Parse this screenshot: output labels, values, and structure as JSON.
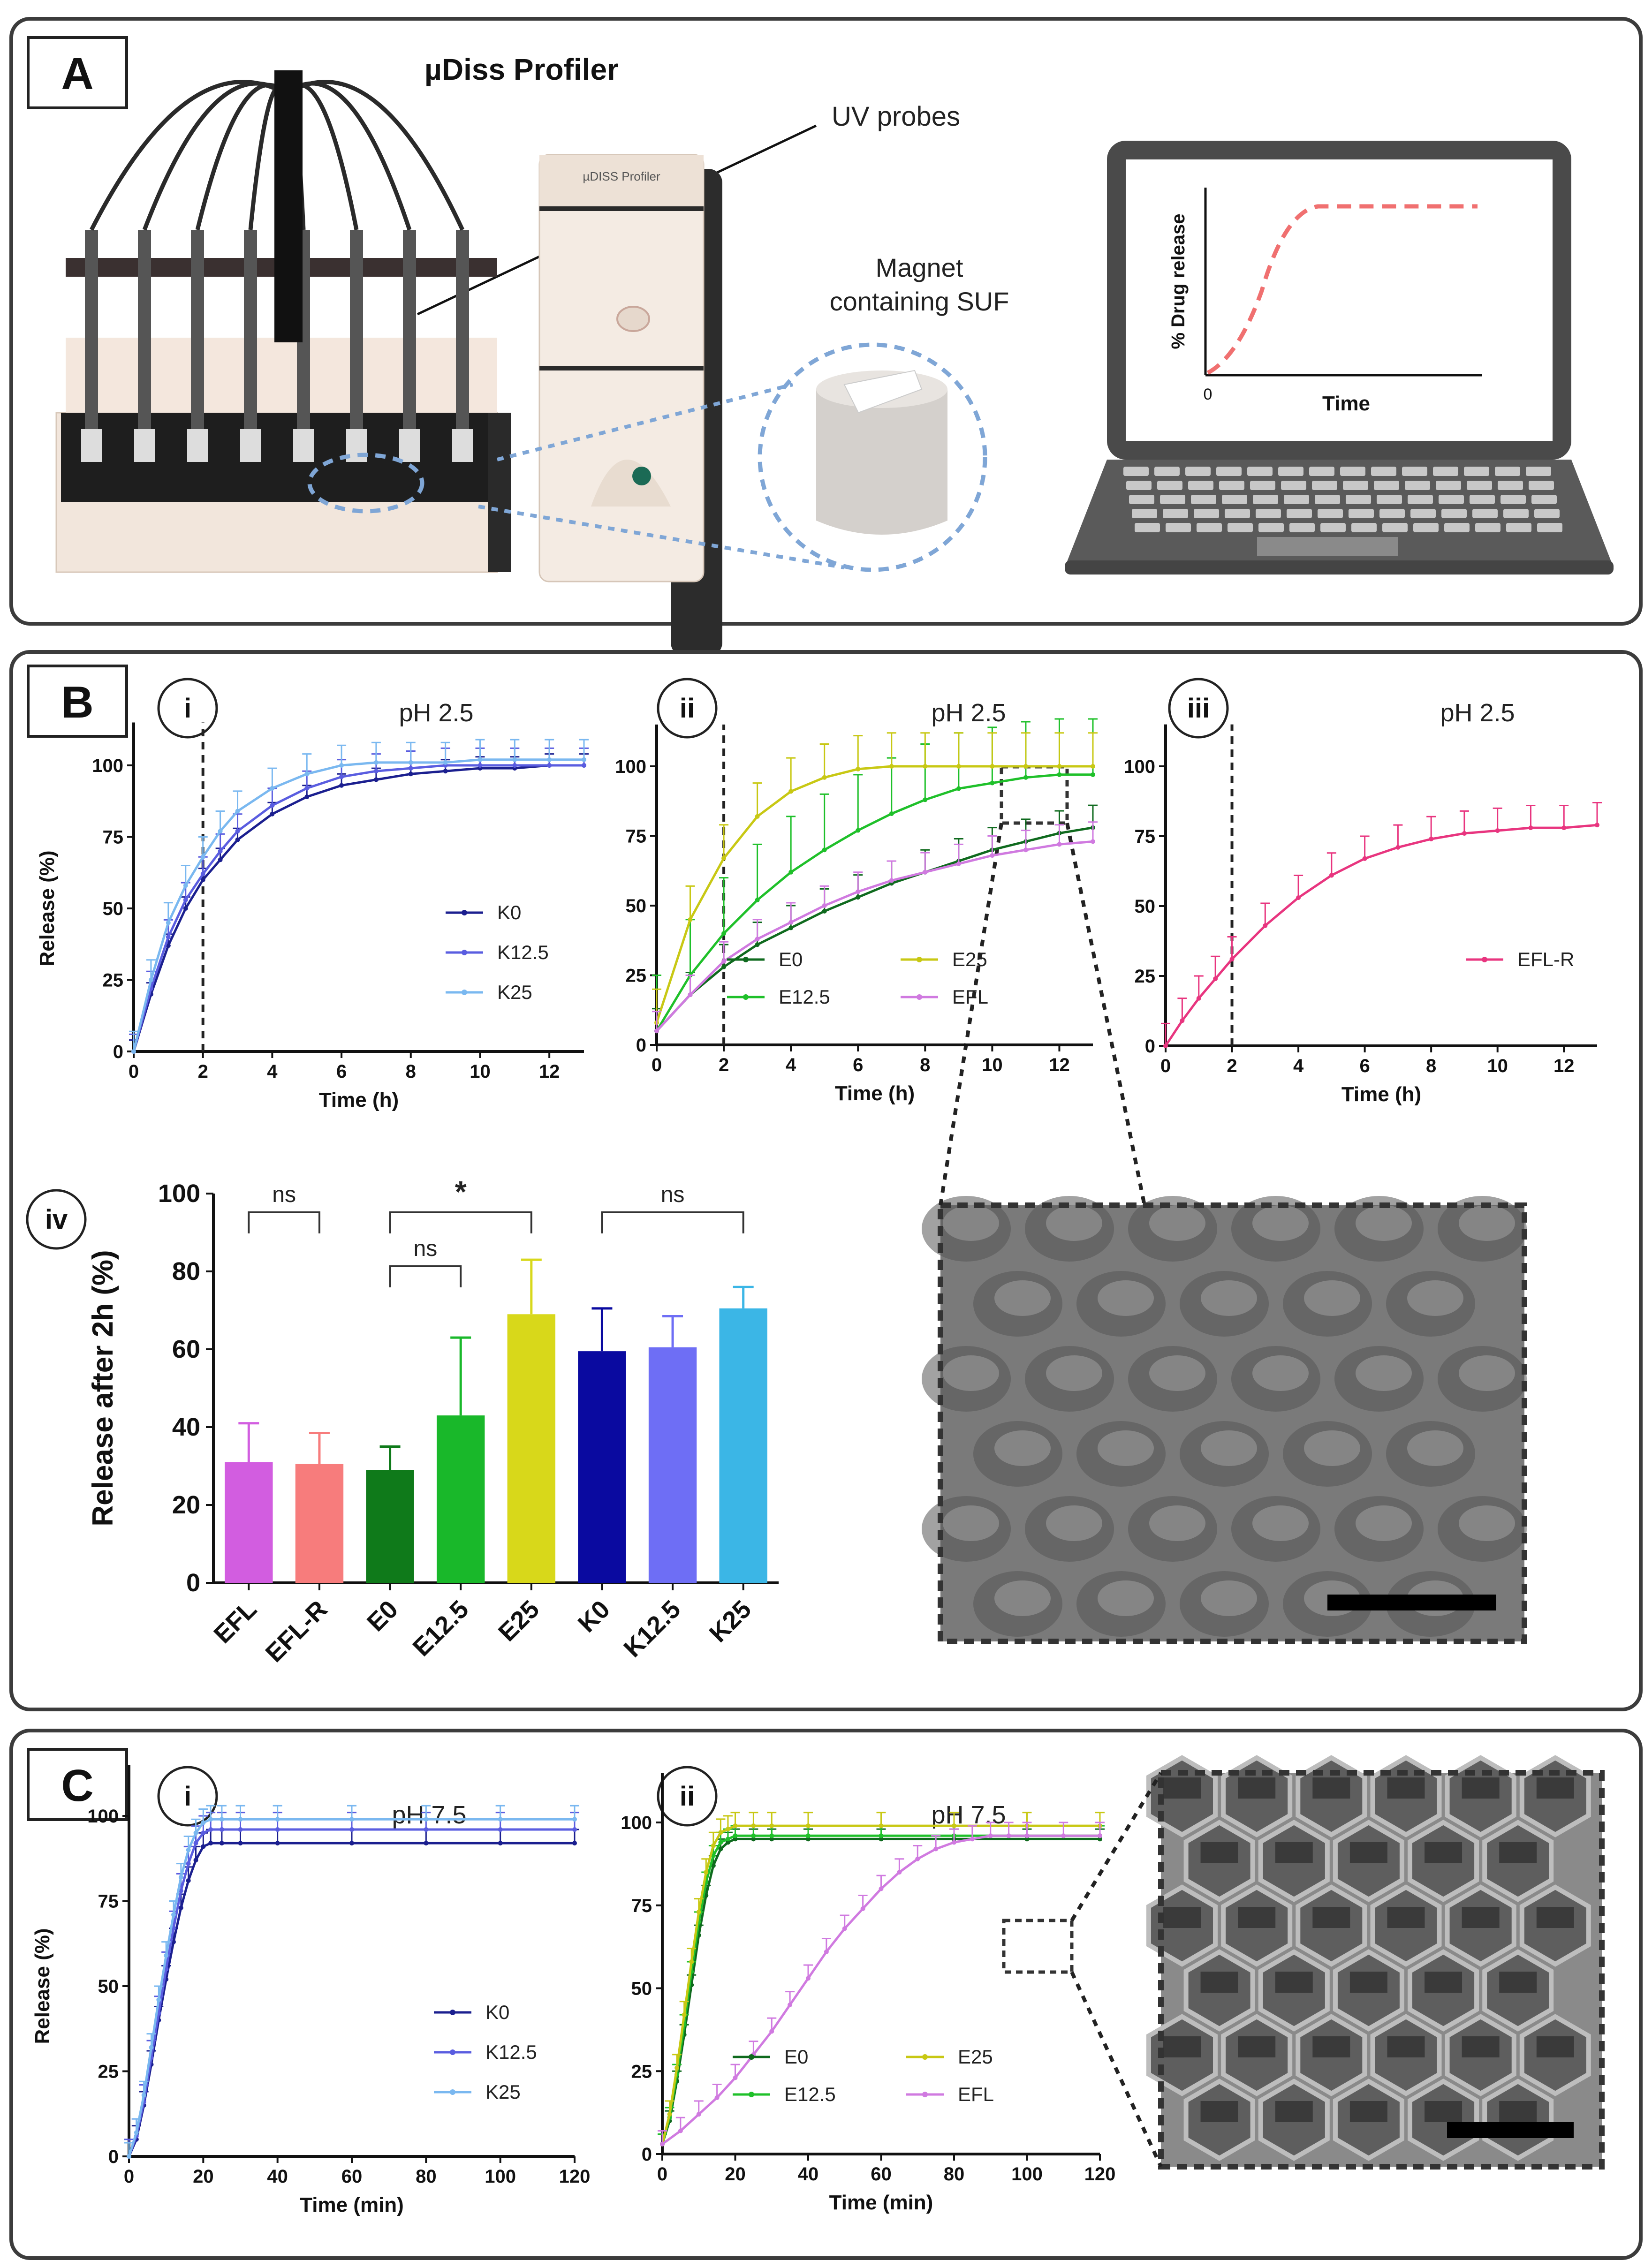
{
  "panelA": {
    "letter": "A",
    "instrument_title": "µDiss Profiler",
    "uv_label": "UV probes",
    "magnet_label_1": "Magnet",
    "magnet_label_2": "containing SUF",
    "device_badge": "µDISS Profiler",
    "plot_ylabel": "% Drug release",
    "plot_xlabel": "Time",
    "plot_zero": "0"
  },
  "panelB": {
    "letter": "B"
  },
  "panelC": {
    "letter": "C"
  },
  "colors": {
    "K0": "#1b1f8f",
    "K12.5": "#5a5de0",
    "K25": "#7ab8f0",
    "E0": "#0f6a1e",
    "E12.5": "#1fc02a",
    "E25": "#c8c814",
    "EFL": "#d07ae0",
    "EFL-R": "#e8357f",
    "EFL_bar": "#d25de0",
    "EFLR_bar": "#f77c7c",
    "E0_bar": "#0f7a1a",
    "E12_bar": "#19b82a",
    "E25_bar": "#d8d81a",
    "K0_bar": "#0a0aa0",
    "K12_bar": "#6e6ef5",
    "K25_bar": "#3bb6e6"
  },
  "chart_data": [
    {
      "id": "Bi",
      "roman": "i",
      "type": "line",
      "title": "pH 2.5",
      "xlabel": "Time (h)",
      "ylabel": "Release (%)",
      "xlim": [
        0,
        13
      ],
      "ylim": [
        0,
        100
      ],
      "xticks": [
        "0",
        "2",
        "4",
        "6",
        "8",
        "10",
        "12"
      ],
      "yticks": [
        "0",
        "25",
        "50",
        "75",
        "100"
      ],
      "vline": 2,
      "series": [
        {
          "name": "K0",
          "color": "#1b1f8f",
          "x": [
            0,
            0.5,
            1,
            1.5,
            2,
            2.5,
            3,
            4,
            5,
            6,
            7,
            8,
            9,
            10,
            11,
            12,
            13
          ],
          "y": [
            0,
            20,
            37,
            50,
            60,
            67,
            74,
            83,
            89,
            93,
            95,
            97,
            98,
            99,
            99,
            100,
            100
          ],
          "err": 4
        },
        {
          "name": "K12.5",
          "color": "#5a5de0",
          "x": [
            0,
            0.5,
            1,
            1.5,
            2,
            2.5,
            3,
            4,
            5,
            6,
            7,
            8,
            9,
            10,
            11,
            12,
            13
          ],
          "y": [
            0,
            22,
            40,
            53,
            62,
            70,
            77,
            86,
            92,
            96,
            98,
            99,
            100,
            100,
            100,
            100,
            100
          ],
          "err": 6
        },
        {
          "name": "K25",
          "color": "#7ab8f0",
          "x": [
            0,
            0.5,
            1,
            1.5,
            2,
            2.5,
            3,
            4,
            5,
            6,
            7,
            8,
            9,
            10,
            11,
            12,
            13
          ],
          "y": [
            0,
            25,
            45,
            58,
            68,
            77,
            84,
            92,
            97,
            100,
            101,
            101,
            101,
            102,
            102,
            102,
            102
          ],
          "err": 7
        }
      ]
    },
    {
      "id": "Bii",
      "roman": "ii",
      "type": "line",
      "title": "pH 2.5",
      "xlabel": "Time (h)",
      "ylabel": "",
      "xlim": [
        0,
        13
      ],
      "ylim": [
        0,
        100
      ],
      "xticks": [
        "0",
        "2",
        "4",
        "6",
        "8",
        "10",
        "12"
      ],
      "yticks": [
        "0",
        "25",
        "50",
        "75",
        "100"
      ],
      "vline": 2,
      "series": [
        {
          "name": "E0",
          "color": "#0f6a1e",
          "x": [
            0,
            1,
            2,
            3,
            4,
            5,
            6,
            7,
            8,
            9,
            10,
            11,
            12,
            13
          ],
          "y": [
            5,
            18,
            28,
            36,
            42,
            48,
            53,
            58,
            62,
            66,
            70,
            73,
            76,
            78
          ],
          "err": 8
        },
        {
          "name": "E12.5",
          "color": "#1fc02a",
          "x": [
            0,
            1,
            2,
            3,
            4,
            5,
            6,
            7,
            8,
            9,
            10,
            11,
            12,
            13
          ],
          "y": [
            5,
            25,
            40,
            52,
            62,
            70,
            77,
            83,
            88,
            92,
            94,
            96,
            97,
            97
          ],
          "err": 20
        },
        {
          "name": "E25",
          "color": "#c8c814",
          "x": [
            0,
            1,
            2,
            3,
            4,
            5,
            6,
            7,
            8,
            9,
            10,
            11,
            12,
            13
          ],
          "y": [
            8,
            45,
            67,
            82,
            91,
            96,
            99,
            100,
            100,
            100,
            100,
            100,
            100,
            100
          ],
          "err": 12
        },
        {
          "name": "EFL",
          "color": "#d07ae0",
          "x": [
            0,
            1,
            2,
            3,
            4,
            5,
            6,
            7,
            8,
            9,
            10,
            11,
            12,
            13
          ],
          "y": [
            5,
            18,
            30,
            38,
            44,
            50,
            55,
            59,
            62,
            65,
            68,
            70,
            72,
            73
          ],
          "err": 7
        }
      ]
    },
    {
      "id": "Biii",
      "roman": "iii",
      "type": "line",
      "title": "pH 2.5",
      "xlabel": "Time (h)",
      "ylabel": "",
      "xlim": [
        0,
        13
      ],
      "ylim": [
        0,
        100
      ],
      "xticks": [
        "0",
        "2",
        "4",
        "6",
        "8",
        "10",
        "12"
      ],
      "yticks": [
        "0",
        "25",
        "50",
        "75",
        "100"
      ],
      "vline": 2,
      "series": [
        {
          "name": "EFL-R",
          "color": "#e8357f",
          "x": [
            0,
            0.5,
            1,
            1.5,
            2,
            3,
            4,
            5,
            6,
            7,
            8,
            9,
            10,
            11,
            12,
            13
          ],
          "y": [
            0,
            9,
            17,
            24,
            31,
            43,
            53,
            61,
            67,
            71,
            74,
            76,
            77,
            78,
            78,
            79
          ],
          "err": 8
        }
      ]
    },
    {
      "id": "Biv",
      "roman": "iv",
      "type": "bar",
      "xlabel": "",
      "ylabel": "Release after 2h (%)",
      "ylim": [
        0,
        100
      ],
      "yticks": [
        "0",
        "20",
        "40",
        "60",
        "80",
        "100"
      ],
      "categories": [
        "EFL",
        "EFL-R",
        "E0",
        "E12.5",
        "E25",
        "K0",
        "K12.5",
        "K25"
      ],
      "values": [
        31,
        30.5,
        29,
        43,
        69,
        59.5,
        60.5,
        70.5
      ],
      "errors": [
        10,
        8,
        6,
        20,
        14,
        11,
        8,
        5.5
      ],
      "bar_colors": [
        "#d25de0",
        "#f77c7c",
        "#0f7a1a",
        "#19b82a",
        "#d8d81a",
        "#0a0aa0",
        "#6e6ef5",
        "#3bb6e6"
      ],
      "significance": [
        {
          "from": 0,
          "to": 1,
          "label": "ns"
        },
        {
          "from": 2,
          "to": 4,
          "label": "*"
        },
        {
          "from": 2,
          "to": 3,
          "label": "ns"
        },
        {
          "from": 5,
          "to": 7,
          "label": "ns"
        }
      ]
    },
    {
      "id": "Ci",
      "roman": "i",
      "type": "line",
      "title": "pH 7.5",
      "xlabel": "Time (min)",
      "ylabel": "Release (%)",
      "xlim": [
        0,
        120
      ],
      "ylim": [
        0,
        100
      ],
      "xticks": [
        "0",
        "20",
        "40",
        "60",
        "80",
        "100",
        "120"
      ],
      "yticks": [
        "0",
        "25",
        "50",
        "75",
        "100"
      ],
      "series": [
        {
          "name": "K0",
          "color": "#1b1f8f",
          "x": [
            0,
            2,
            4,
            6,
            8,
            10,
            12,
            14,
            16,
            18,
            20,
            22,
            25,
            30,
            40,
            60,
            80,
            100,
            120
          ],
          "y": [
            0,
            5,
            15,
            27,
            40,
            52,
            63,
            73,
            81,
            87,
            91,
            92,
            92,
            92,
            92,
            92,
            92,
            92,
            92
          ],
          "err": 4
        },
        {
          "name": "K12.5",
          "color": "#5a5de0",
          "x": [
            0,
            2,
            4,
            6,
            8,
            10,
            12,
            14,
            16,
            18,
            20,
            22,
            25,
            30,
            40,
            60,
            80,
            100,
            120
          ],
          "y": [
            0,
            6,
            16,
            29,
            42,
            55,
            67,
            78,
            86,
            92,
            95,
            96,
            96,
            96,
            96,
            96,
            96,
            96,
            96
          ],
          "err": 5
        },
        {
          "name": "K25",
          "color": "#7ab8f0",
          "x": [
            0,
            2,
            4,
            6,
            8,
            10,
            12,
            14,
            16,
            18,
            20,
            22,
            25,
            30,
            40,
            60,
            80,
            100,
            120
          ],
          "y": [
            0,
            7,
            18,
            32,
            46,
            59,
            71,
            82,
            90,
            95,
            98,
            99,
            99,
            99,
            99,
            99,
            99,
            99,
            99
          ],
          "err": 4
        }
      ]
    },
    {
      "id": "Cii",
      "roman": "ii",
      "type": "line",
      "title": "pH 7.5",
      "xlabel": "Time (min)",
      "ylabel": "",
      "xlim": [
        0,
        120
      ],
      "ylim": [
        0,
        100
      ],
      "xticks": [
        "0",
        "20",
        "40",
        "60",
        "80",
        "100",
        "120"
      ],
      "yticks": [
        "0",
        "25",
        "50",
        "75",
        "100"
      ],
      "series": [
        {
          "name": "E0",
          "color": "#0f6a1e",
          "x": [
            0,
            2,
            4,
            6,
            8,
            10,
            12,
            14,
            16,
            18,
            20,
            25,
            30,
            40,
            60,
            80,
            100,
            120
          ],
          "y": [
            3,
            10,
            22,
            36,
            51,
            66,
            78,
            87,
            92,
            94,
            95,
            95,
            95,
            95,
            95,
            95,
            95,
            95
          ],
          "err": 3
        },
        {
          "name": "E12.5",
          "color": "#1fc02a",
          "x": [
            0,
            2,
            4,
            6,
            8,
            10,
            12,
            14,
            16,
            18,
            20,
            25,
            30,
            40,
            60,
            80,
            100,
            120
          ],
          "y": [
            3,
            11,
            24,
            39,
            55,
            70,
            82,
            90,
            94,
            95,
            96,
            96,
            96,
            96,
            96,
            96,
            96,
            96
          ],
          "err": 3
        },
        {
          "name": "E25",
          "color": "#c8c814",
          "x": [
            0,
            2,
            4,
            6,
            8,
            10,
            12,
            14,
            16,
            18,
            20,
            25,
            30,
            40,
            60,
            80,
            100,
            120
          ],
          "y": [
            3,
            12,
            26,
            42,
            58,
            73,
            85,
            93,
            97,
            98,
            99,
            99,
            99,
            99,
            99,
            99,
            99,
            99
          ],
          "err": 4
        },
        {
          "name": "EFL",
          "color": "#d07ae0",
          "x": [
            0,
            5,
            10,
            15,
            20,
            25,
            30,
            35,
            40,
            45,
            50,
            55,
            60,
            65,
            70,
            75,
            80,
            85,
            90,
            95,
            100,
            110,
            120
          ],
          "y": [
            3,
            7,
            12,
            17,
            23,
            30,
            37,
            45,
            53,
            61,
            68,
            74,
            80,
            85,
            89,
            92,
            94,
            95,
            96,
            96,
            96,
            96,
            96
          ],
          "err": 4
        }
      ]
    }
  ]
}
